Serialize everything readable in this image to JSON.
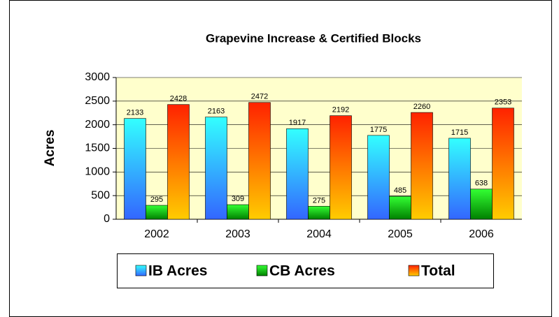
{
  "chart_data": {
    "type": "bar",
    "title": "Grapevine Increase & Certified Blocks",
    "y_label": "Acres",
    "categories": [
      "2002",
      "2003",
      "2004",
      "2005",
      "2006"
    ],
    "series": [
      {
        "name": "IB Acres",
        "color": [
          "#33ffff",
          "#3366ff"
        ],
        "values": [
          2133,
          2163,
          1917,
          1775,
          1715
        ]
      },
      {
        "name": "CB Acres",
        "color": [
          "#33ff33",
          "#008000"
        ],
        "values": [
          295,
          309,
          275,
          485,
          638
        ]
      },
      {
        "name": "Total",
        "color": [
          "#ff2200",
          "#ffcc00"
        ],
        "values": [
          2428,
          2472,
          2192,
          2260,
          2353
        ]
      }
    ],
    "ylim": [
      0,
      3000
    ],
    "yticks": [
      0,
      500,
      1000,
      1500,
      2000,
      2500,
      3000
    ],
    "grid": true,
    "legend": "bottom"
  }
}
